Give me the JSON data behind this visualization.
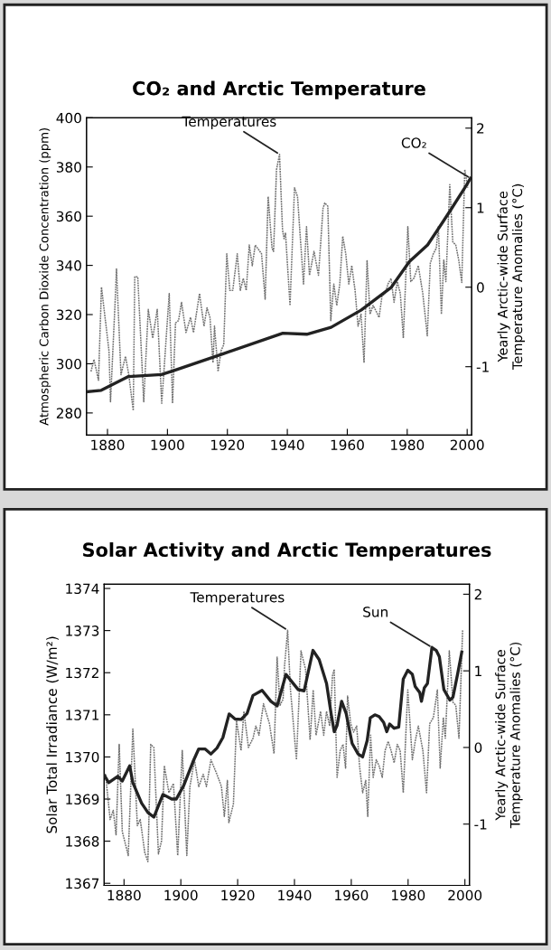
{
  "chart_data": [
    {
      "type": "line",
      "title": "CO₂ and Arctic Temperature",
      "ylabel": "Atmospheric Carbon Dioxide Concentration (ppm)",
      "y2label": "Yearly Arctic-wide Surface\nTemperature Anomalies (°C)",
      "xlim": [
        1873,
        2001.5
      ],
      "xticks": [
        1880,
        1900,
        1920,
        1940,
        1960,
        1980,
        2000
      ],
      "ylim": [
        271,
        400
      ],
      "yticks": [
        280,
        300,
        320,
        340,
        360,
        380,
        400
      ],
      "y2lim": [
        -1.86,
        2.13
      ],
      "y2ticks": [
        -1,
        0,
        1,
        2
      ],
      "grid": false,
      "legend": false,
      "series": [
        {
          "name": "Temperatures",
          "axis": "y2",
          "color": "#707070",
          "line_style": "dotted",
          "x": [
            1874.5,
            1875.5,
            1877.0,
            1878.0,
            1880.5,
            1881.0,
            1882.5,
            1883.0,
            1884.5,
            1886.0,
            1887.1,
            1888.6,
            1889.1,
            1890.1,
            1892.1,
            1893.6,
            1895.1,
            1896.6,
            1898.1,
            1900.6,
            1901.7,
            1902.7,
            1903.7,
            1904.7,
            1906.2,
            1907.7,
            1908.7,
            1910.7,
            1912.2,
            1913.2,
            1914.2,
            1915.2,
            1915.7,
            1916.9,
            1917.9,
            1918.8,
            1919.8,
            1920.8,
            1921.8,
            1923.3,
            1924.3,
            1925.3,
            1926.3,
            1927.3,
            1928.3,
            1929.3,
            1931.4,
            1932.6,
            1933.6,
            1934.9,
            1935.4,
            1936.4,
            1937.4,
            1938.4,
            1938.9,
            1939.4,
            1940.9,
            1942.4,
            1943.4,
            1945.4,
            1946.4,
            1947.4,
            1948.9,
            1950.4,
            1951.9,
            1952.5,
            1953.5,
            1954.5,
            1955.5,
            1956.5,
            1957.5,
            1958.5,
            1959.5,
            1960.5,
            1961.0,
            1961.5,
            1962.6,
            1963.6,
            1964.6,
            1965.6,
            1966.6,
            1967.6,
            1968.6,
            1969.6,
            1970.6,
            1971.6,
            1972.6,
            1973.6,
            1974.6,
            1975.6,
            1976.7,
            1977.7,
            1978.7,
            1980.2,
            1981.2,
            1982.2,
            1983.7,
            1985.2,
            1986.7,
            1987.7,
            1988.7,
            1989.7,
            1990.4,
            1991.4,
            1992.2,
            1992.9,
            1994.2,
            1995.2,
            1996.2,
            1997.2,
            1998.2,
            1999.2,
            2000.2
          ],
          "values": [
            -1.06,
            -0.91,
            -1.17,
            0.0,
            -0.8,
            -1.44,
            -0.23,
            0.23,
            -1.1,
            -0.87,
            -1.1,
            -1.55,
            0.13,
            0.13,
            -1.44,
            -0.28,
            -0.64,
            -0.28,
            -1.46,
            -0.08,
            -1.46,
            -0.45,
            -0.42,
            -0.19,
            -0.57,
            -0.38,
            -0.57,
            -0.08,
            -0.49,
            -0.26,
            -0.38,
            -0.95,
            -0.49,
            -1.06,
            -0.8,
            -0.72,
            0.42,
            -0.04,
            -0.04,
            0.42,
            -0.04,
            0.11,
            -0.04,
            0.53,
            0.27,
            0.53,
            0.42,
            -0.15,
            1.14,
            0.49,
            0.45,
            1.48,
            1.67,
            0.72,
            0.61,
            0.68,
            -0.23,
            1.25,
            1.14,
            0.04,
            0.76,
            0.15,
            0.45,
            0.15,
            0.99,
            1.06,
            1.02,
            -0.42,
            0.04,
            -0.23,
            0.04,
            0.64,
            0.42,
            0.04,
            0.15,
            0.27,
            -0.04,
            -0.49,
            -0.34,
            -0.95,
            0.34,
            -0.34,
            -0.23,
            -0.3,
            -0.38,
            -0.11,
            -0.08,
            0.04,
            0.11,
            -0.19,
            0.07,
            -0.08,
            -0.64,
            0.76,
            0.07,
            0.11,
            0.27,
            -0.08,
            -0.61,
            0.3,
            0.42,
            0.49,
            0.76,
            -0.34,
            0.34,
            0.07,
            1.29,
            0.57,
            0.53,
            0.34,
            0.06,
            1.48,
            1.25
          ]
        },
        {
          "name": "CO₂",
          "color": "#222222",
          "line_style": "solid",
          "x": [
            1873,
            1877.9,
            1887,
            1898,
            1902,
            1918.4,
            1938.5,
            1946.5,
            1954.6,
            1964.6,
            1974.7,
            1980.7,
            1986.8,
            1991.8,
            1994.8,
            1999.9,
            2001.1
          ],
          "values": [
            288.6,
            289.2,
            294.8,
            295.6,
            297.2,
            304,
            312.4,
            312,
            314.8,
            321.8,
            331.1,
            341.5,
            348.3,
            357.5,
            363.1,
            372.9,
            375.4
          ]
        }
      ]
    },
    {
      "type": "line",
      "title": "Solar Activity and Arctic Temperatures",
      "ylabel": "Solar Total Irradiance (W/m²)",
      "y2label": "Yearly Arctic-wide Surface\nTemperature Anomalies (°C)",
      "xlim": [
        1873,
        2001.6
      ],
      "xticks": [
        1880,
        1900,
        1920,
        1940,
        1960,
        1980,
        2000
      ],
      "ylim": [
        1366.95,
        1374.1
      ],
      "yticks": [
        1367,
        1368,
        1369,
        1370,
        1371,
        1372,
        1373,
        1374
      ],
      "y2lim": [
        -1.8,
        2.13
      ],
      "y2ticks": [
        -1,
        0,
        1,
        2
      ],
      "grid": false,
      "legend": false,
      "series": [
        {
          "name": "Temperatures",
          "axis": "y2",
          "color": "#707070",
          "line_style": "dotted",
          "x": [
            1873.5,
            1875.1,
            1876.2,
            1877.2,
            1878.3,
            1879.4,
            1881.5,
            1883.1,
            1884.7,
            1885.7,
            1887.3,
            1888.4,
            1889.4,
            1890.5,
            1892.1,
            1893.2,
            1894.2,
            1895.8,
            1897.4,
            1898.9,
            1900.5,
            1902.1,
            1903.2,
            1904.8,
            1906.3,
            1907.9,
            1909.0,
            1910.6,
            1912.7,
            1914.3,
            1915.3,
            1916.4,
            1916.9,
            1918.5,
            1919.6,
            1921.2,
            1922.2,
            1923.8,
            1925.4,
            1926.4,
            1927.5,
            1929.1,
            1931.2,
            1932.8,
            1933.9,
            1934.9,
            1936.0,
            1936.5,
            1937.6,
            1938.6,
            1940.7,
            1942.3,
            1943.9,
            1945.5,
            1946.6,
            1947.6,
            1949.2,
            1950.3,
            1951.3,
            1952.4,
            1953.4,
            1954.0,
            1955.0,
            1956.1,
            1957.1,
            1958.0,
            1958.7,
            1959.8,
            1960.8,
            1961.9,
            1962.9,
            1964.0,
            1965.1,
            1965.8,
            1966.8,
            1967.7,
            1968.8,
            1969.8,
            1970.9,
            1971.9,
            1973.0,
            1974.0,
            1975.1,
            1976.2,
            1977.2,
            1978.3,
            1979.9,
            1981.5,
            1982.5,
            1983.6,
            1985.2,
            1986.5,
            1987.6,
            1988.9,
            1990.3,
            1991.3,
            1992.4,
            1993.1,
            1994.5,
            1995.8,
            1996.8,
            1997.9,
            1999.2
          ],
          "values": [
            -0.35,
            -0.94,
            -0.82,
            -1.14,
            0.04,
            -1.1,
            -1.41,
            0.24,
            -1.02,
            -0.94,
            -1.37,
            -1.49,
            0.04,
            0.0,
            -1.39,
            -1.22,
            -0.24,
            -0.59,
            -0.47,
            -1.41,
            -0.04,
            -1.41,
            -0.51,
            -0.16,
            -0.51,
            -0.35,
            -0.51,
            -0.16,
            -0.35,
            -0.51,
            -0.9,
            -0.43,
            -0.98,
            -0.74,
            0.35,
            -0.04,
            0.47,
            0.0,
            0.12,
            0.28,
            0.16,
            0.57,
            0.31,
            -0.08,
            1.18,
            0.55,
            0.63,
            1.06,
            1.53,
            0.75,
            -0.16,
            1.26,
            1.02,
            0.1,
            0.75,
            0.16,
            0.47,
            0.16,
            0.47,
            0.28,
            0.94,
            1.02,
            -0.39,
            -0.04,
            0.04,
            -0.27,
            0.67,
            0.31,
            0.2,
            0.28,
            -0.24,
            -0.59,
            -0.43,
            -0.9,
            0.16,
            -0.39,
            -0.16,
            -0.24,
            -0.39,
            -0.04,
            0.08,
            -0.04,
            -0.2,
            0.04,
            -0.04,
            -0.59,
            0.75,
            -0.16,
            0.08,
            0.28,
            -0.04,
            -0.59,
            0.31,
            0.39,
            0.75,
            -0.27,
            0.39,
            0.12,
            1.26,
            0.59,
            0.55,
            0.12,
            1.53
          ]
        },
        {
          "name": "Sun",
          "color": "#222222",
          "line_style": "solid",
          "x": [
            1873.0,
            1874.6,
            1877.8,
            1879.4,
            1882.0,
            1883.1,
            1886.2,
            1888.4,
            1890.5,
            1893.7,
            1896.8,
            1898.4,
            1901.0,
            1904.3,
            1906.3,
            1908.5,
            1910.6,
            1912.7,
            1914.8,
            1917.0,
            1919.1,
            1921.2,
            1923.3,
            1925.4,
            1928.6,
            1931.7,
            1933.9,
            1937.0,
            1941.3,
            1943.4,
            1946.5,
            1948.7,
            1950.3,
            1951.3,
            1952.9,
            1954.0,
            1955.0,
            1956.6,
            1958.2,
            1960.3,
            1962.4,
            1964.0,
            1965.6,
            1966.7,
            1968.3,
            1969.8,
            1971.4,
            1972.5,
            1973.5,
            1975.1,
            1976.7,
            1978.3,
            1979.9,
            1981.5,
            1982.5,
            1984.1,
            1984.7,
            1985.7,
            1986.8,
            1988.4,
            1989.9,
            1991.0,
            1992.6,
            1994.7,
            1995.8,
            1997.4,
            1998.9
          ],
          "values": [
            1369.57,
            1369.39,
            1369.54,
            1369.43,
            1369.79,
            1369.39,
            1368.9,
            1368.68,
            1368.57,
            1369.11,
            1369.0,
            1369.0,
            1369.32,
            1369.89,
            1370.19,
            1370.19,
            1370.07,
            1370.21,
            1370.46,
            1371.02,
            1370.9,
            1370.89,
            1371.03,
            1371.46,
            1371.58,
            1371.32,
            1371.21,
            1371.96,
            1371.6,
            1371.57,
            1372.53,
            1372.31,
            1371.96,
            1371.74,
            1371.03,
            1370.6,
            1370.75,
            1371.32,
            1371.03,
            1370.32,
            1370.07,
            1370.0,
            1370.39,
            1370.93,
            1371.0,
            1370.96,
            1370.82,
            1370.6,
            1370.78,
            1370.68,
            1370.71,
            1371.85,
            1372.06,
            1371.96,
            1371.67,
            1371.53,
            1371.32,
            1371.64,
            1371.74,
            1372.6,
            1372.53,
            1372.38,
            1371.6,
            1371.35,
            1371.42,
            1371.96,
            1372.49
          ]
        }
      ]
    }
  ]
}
